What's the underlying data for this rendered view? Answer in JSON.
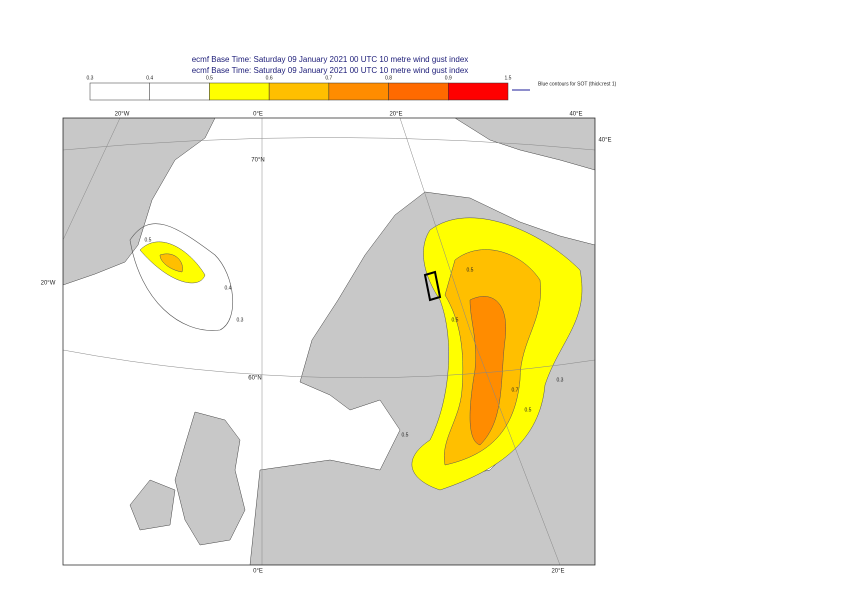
{
  "header": {
    "lines": [
      "ecmf  Base Time: Saturday 09 January 2021 00 UTC 10 metre wind gust index",
      "ecmf  Base Time: Saturday 09 January 2021 00 UTC 10 metre wind gust index"
    ]
  },
  "colorbar": {
    "levels": [
      0.3,
      0.4,
      0.5,
      0.6,
      0.7,
      0.8,
      0.9,
      1.5
    ],
    "colors": [
      "#ffffff",
      "#ffffff",
      "#ffff00",
      "#ffbf00",
      "#ff8c00",
      "#ff6a00",
      "#ff0000"
    ],
    "note": "Blue contours for SOT (thick:rest 1)"
  },
  "graticule": {
    "top": [
      "20°W",
      "0°E",
      "20°E",
      "40°E"
    ],
    "right": "40°E",
    "parallels": [
      "70°N",
      "60°N"
    ],
    "left": "20°W",
    "bottom": [
      "0°E",
      "20°E"
    ]
  },
  "contour_labels": [
    "0.5",
    "0.4",
    "0.3",
    "0.5",
    "0.5",
    "0.7",
    "0.5",
    "0.3",
    "0.5"
  ]
}
